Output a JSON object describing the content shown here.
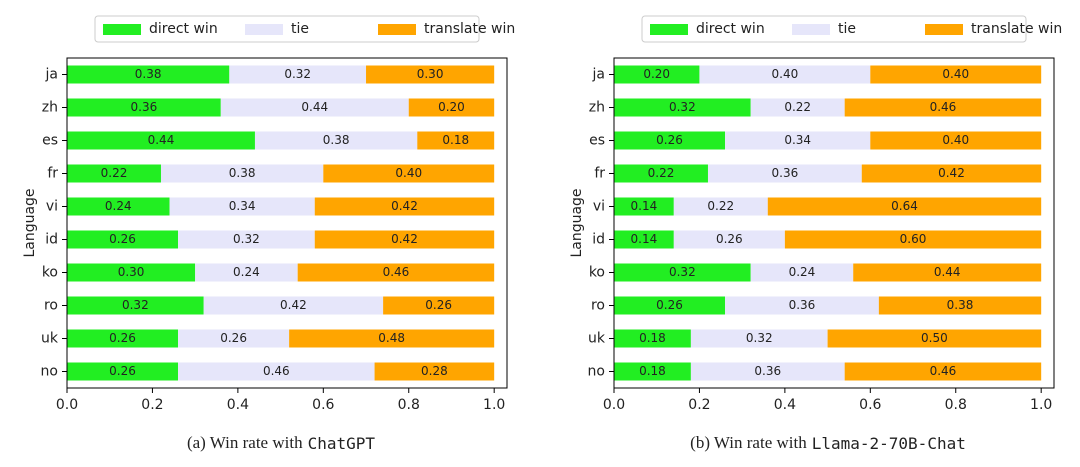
{
  "chart_data": [
    {
      "type": "stacked-barh",
      "ylabel": "Language",
      "caption": "(a) Win rate with",
      "caption_model": "ChatGPT",
      "legend": "upper center",
      "categories": [
        "ja",
        "zh",
        "es",
        "fr",
        "vi",
        "id",
        "ko",
        "ro",
        "uk",
        "no"
      ],
      "series": [
        {
          "name": "direct win",
          "color": "#22ee22",
          "values": [
            0.38,
            0.36,
            0.44,
            0.22,
            0.24,
            0.26,
            0.3,
            0.32,
            0.26,
            0.26
          ],
          "value_labels": [
            "0.38",
            "0.36",
            "0.44",
            "0.22",
            "0.24",
            "0.26",
            "0.30",
            "0.32",
            "0.26",
            "0.26"
          ]
        },
        {
          "name": "tie",
          "color": "#e6e6fa",
          "values": [
            0.32,
            0.44,
            0.38,
            0.38,
            0.34,
            0.32,
            0.24,
            0.42,
            0.26,
            0.46
          ],
          "value_labels": [
            "0.32",
            "0.44",
            "0.38",
            "0.38",
            "0.34",
            "0.32",
            "0.24",
            "0.42",
            "0.26",
            "0.46"
          ]
        },
        {
          "name": "translate win",
          "color": "#ffa500",
          "values": [
            0.3,
            0.2,
            0.18,
            0.4,
            0.42,
            0.42,
            0.46,
            0.26,
            0.48,
            0.28
          ],
          "value_labels": [
            "0.30",
            "0.20",
            "0.18",
            "0.40",
            "0.42",
            "0.42",
            "0.46",
            "0.26",
            "0.48",
            "0.28"
          ]
        }
      ],
      "xlim": [
        0,
        1.03
      ],
      "xticks": [
        {
          "value": 0,
          "label": "0.0"
        },
        0.2,
        0.4,
        0.6,
        0.8,
        {
          "value": 1,
          "label": "1.0"
        }
      ]
    },
    {
      "type": "stacked-barh",
      "ylabel": "Language",
      "caption": "(b) Win rate with",
      "caption_model": "Llama-2-70B-Chat",
      "legend": "upper center",
      "categories": [
        "ja",
        "zh",
        "es",
        "fr",
        "vi",
        "id",
        "ko",
        "ro",
        "uk",
        "no"
      ],
      "series": [
        {
          "name": "direct win",
          "color": "#22ee22",
          "values": [
            0.2,
            0.32,
            0.26,
            0.22,
            0.14,
            0.14,
            0.32,
            0.26,
            0.18,
            0.18
          ],
          "value_labels": [
            "0.20",
            "0.32",
            "0.26",
            "0.22",
            "0.14",
            "0.14",
            "0.32",
            "0.26",
            "0.18",
            "0.18"
          ]
        },
        {
          "name": "tie",
          "color": "#e6e6fa",
          "values": [
            0.4,
            0.22,
            0.34,
            0.36,
            0.22,
            0.26,
            0.24,
            0.36,
            0.32,
            0.36
          ],
          "value_labels": [
            "0.40",
            "0.22",
            "0.34",
            "0.36",
            "0.22",
            "0.26",
            "0.24",
            "0.36",
            "0.32",
            "0.36"
          ]
        },
        {
          "name": "translate win",
          "color": "#ffa500",
          "values": [
            0.4,
            0.46,
            0.4,
            0.42,
            0.64,
            0.6,
            0.44,
            0.38,
            0.5,
            0.46
          ],
          "value_labels": [
            "0.40",
            "0.46",
            "0.40",
            "0.42",
            "0.64",
            "0.60",
            "0.44",
            "0.38",
            "0.50",
            "0.46"
          ]
        }
      ],
      "xlim": [
        0,
        1.03
      ],
      "xticks": [
        {
          "value": 0,
          "label": "0.0"
        },
        0.2,
        0.4,
        0.6,
        0.8,
        {
          "value": 1,
          "label": "1.0"
        }
      ]
    }
  ]
}
